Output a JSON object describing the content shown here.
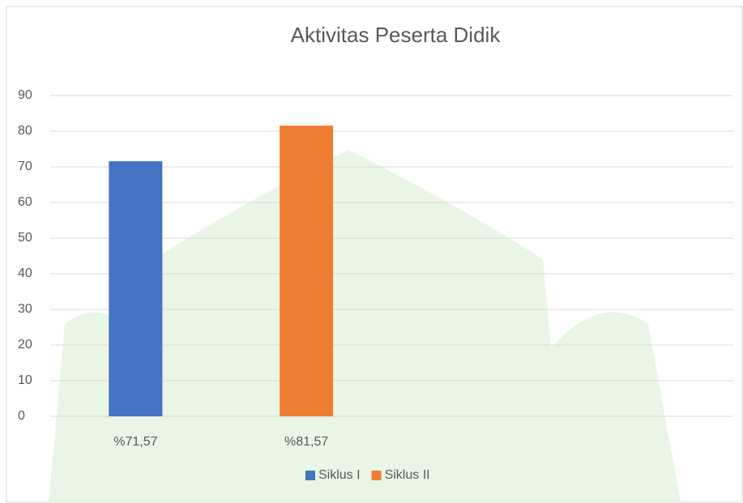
{
  "chart_data": {
    "type": "bar",
    "title": "Aktivitas Peserta Didik",
    "categories": [
      "%71,57",
      "%81,57",
      null,
      null
    ],
    "series": [
      {
        "name": "Siklus I",
        "color": "#4472c4",
        "values": [
          71.57,
          null,
          null,
          null
        ]
      },
      {
        "name": "Siklus II",
        "color": "#ed7d31",
        "values": [
          null,
          81.57,
          null,
          null
        ]
      }
    ],
    "ylim": [
      0,
      90
    ],
    "yticks": [
      0,
      10,
      20,
      30,
      40,
      50,
      60,
      70,
      80,
      90
    ],
    "grid": true,
    "legend": "bottom"
  }
}
